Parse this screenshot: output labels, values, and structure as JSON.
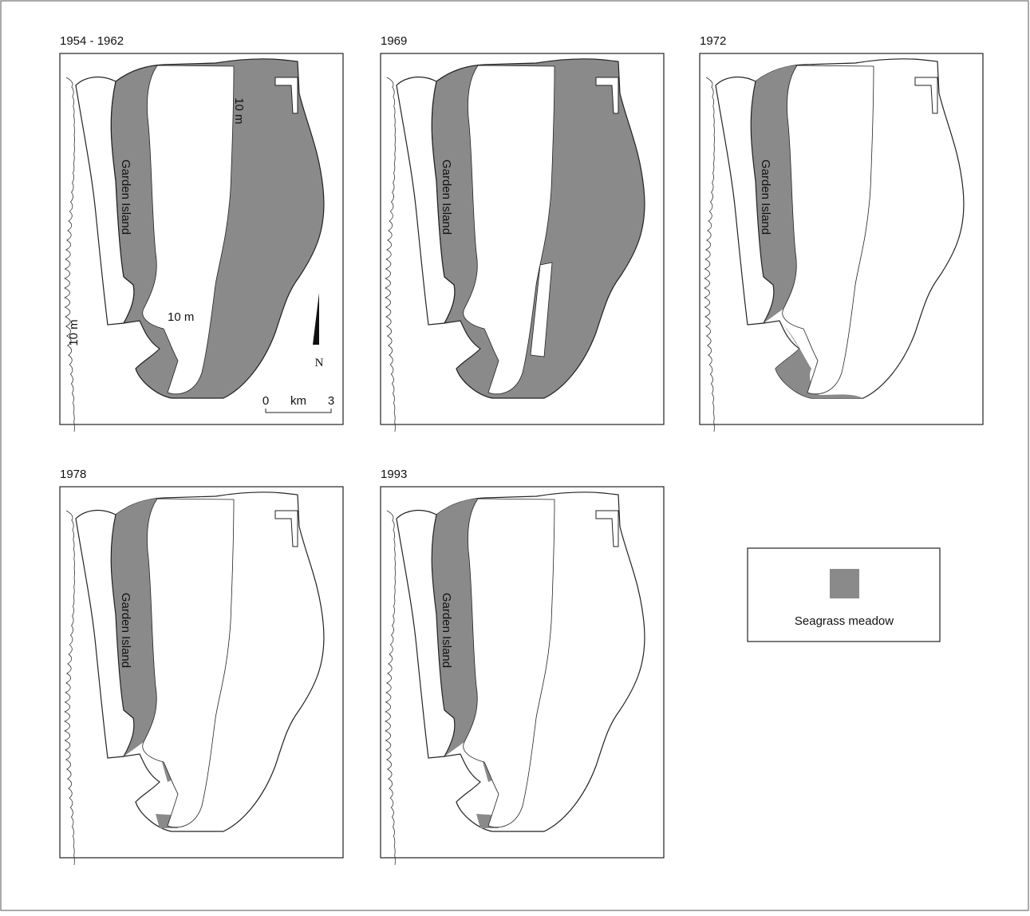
{
  "panels": [
    {
      "title": "1954 - 1962",
      "island_label": "Garden Island",
      "depth_labels": [
        "10 m",
        "10 m",
        "10 m"
      ],
      "north": "N",
      "scale": {
        "start": "0",
        "unit": "km",
        "end": "3"
      }
    },
    {
      "title": "1969",
      "island_label": "Garden Island"
    },
    {
      "title": "1972",
      "island_label": "Garden Island"
    },
    {
      "title": "1978",
      "island_label": "Garden Island"
    },
    {
      "title": "1993",
      "island_label": "Garden Island"
    }
  ],
  "legend": {
    "label": "Seagrass meadow"
  }
}
